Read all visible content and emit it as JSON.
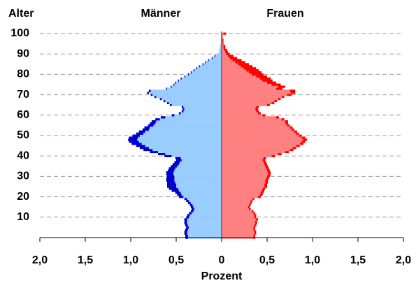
{
  "chart_data": {
    "type": "pyramid",
    "y_title": "Alter",
    "x_title": "Prozent",
    "xlim": [
      -2,
      2
    ],
    "xticks": [
      {
        "value": -2,
        "label": "2,0"
      },
      {
        "value": -1.5,
        "label": "1,5"
      },
      {
        "value": -1,
        "label": "1,0"
      },
      {
        "value": -0.5,
        "label": "0,5"
      },
      0,
      {
        "value": 0.5,
        "label": "0,5"
      },
      {
        "value": 1,
        "label": "1,0"
      },
      {
        "value": 1.5,
        "label": "1,5"
      },
      {
        "value": 2,
        "label": "2,0"
      }
    ],
    "ylim": [
      0,
      100
    ],
    "yticks": [
      10,
      20,
      30,
      40,
      50,
      60,
      70,
      80,
      90,
      100
    ],
    "grid": true,
    "series": [
      {
        "name": "Männer",
        "side": "left",
        "color": "#99ccff",
        "outer_color": "#0000cc",
        "values": [
          0.37,
          0.37,
          0.38,
          0.38,
          0.37,
          0.36,
          0.37,
          0.38,
          0.38,
          0.38,
          0.36,
          0.35,
          0.33,
          0.31,
          0.3,
          0.31,
          0.32,
          0.34,
          0.36,
          0.38,
          0.42,
          0.44,
          0.45,
          0.47,
          0.48,
          0.5,
          0.5,
          0.51,
          0.52,
          0.52,
          0.52,
          0.53,
          0.53,
          0.52,
          0.51,
          0.49,
          0.47,
          0.46,
          0.44,
          0.45,
          0.55,
          0.62,
          0.7,
          0.76,
          0.8,
          0.84,
          0.88,
          0.91,
          0.93,
          0.92,
          0.9,
          0.86,
          0.84,
          0.8,
          0.79,
          0.75,
          0.73,
          0.72,
          0.68,
          0.62,
          0.52,
          0.45,
          0.42,
          0.41,
          0.42,
          0.55,
          0.58,
          0.62,
          0.66,
          0.72,
          0.76,
          0.8,
          0.78,
          0.6,
          0.55,
          0.52,
          0.5,
          0.47,
          0.44,
          0.4,
          0.36,
          0.33,
          0.3,
          0.27,
          0.24,
          0.2,
          0.17,
          0.14,
          0.1,
          0.07,
          0.04,
          0.03,
          0.03,
          0.02,
          0.02,
          0.01,
          0.01,
          0.01,
          0,
          0,
          0.01
        ],
        "outer_values": [
          0.03,
          0.03,
          0.03,
          0.03,
          0.03,
          0.03,
          0.03,
          0.03,
          0.03,
          0.03,
          0.03,
          0.03,
          0.03,
          0.03,
          0.03,
          0.03,
          0.03,
          0.03,
          0.03,
          0.03,
          0.05,
          0.05,
          0.06,
          0.08,
          0.1,
          0.1,
          0.1,
          0.09,
          0.09,
          0.09,
          0.08,
          0.08,
          0.08,
          0.07,
          0.07,
          0.07,
          0.07,
          0.06,
          0.06,
          0.06,
          0.08,
          0.08,
          0.09,
          0.1,
          0.1,
          0.1,
          0.11,
          0.11,
          0.1,
          0.1,
          0.08,
          0.08,
          0.07,
          0.07,
          0.06,
          0.06,
          0.06,
          0.05,
          0.05,
          0.05,
          0.03,
          0.02,
          0.02,
          0.02,
          0.02,
          0.02,
          0.02,
          0.02,
          0.02,
          0.02,
          0.02,
          0.02,
          0.02,
          0.01,
          0.01,
          0.01,
          0.01,
          0.01,
          0.01,
          0.01,
          0.01,
          0.01,
          0.01,
          0.01,
          0.01,
          0.01,
          0.01,
          0.01,
          0.01,
          0.01,
          0,
          0,
          0,
          0,
          0,
          0,
          0,
          0,
          0,
          0,
          0
        ]
      },
      {
        "name": "Frauen",
        "side": "right",
        "color": "#ff8080",
        "outer_color": "#ff0000",
        "values": [
          0.35,
          0.35,
          0.36,
          0.36,
          0.35,
          0.35,
          0.36,
          0.37,
          0.37,
          0.38,
          0.36,
          0.36,
          0.35,
          0.33,
          0.3,
          0.29,
          0.3,
          0.31,
          0.32,
          0.34,
          0.4,
          0.42,
          0.43,
          0.44,
          0.45,
          0.47,
          0.47,
          0.48,
          0.48,
          0.49,
          0.5,
          0.51,
          0.51,
          0.5,
          0.49,
          0.48,
          0.47,
          0.46,
          0.45,
          0.46,
          0.55,
          0.62,
          0.7,
          0.75,
          0.78,
          0.82,
          0.86,
          0.88,
          0.9,
          0.88,
          0.85,
          0.82,
          0.8,
          0.77,
          0.75,
          0.72,
          0.7,
          0.7,
          0.66,
          0.6,
          0.45,
          0.4,
          0.38,
          0.37,
          0.38,
          0.5,
          0.55,
          0.58,
          0.62,
          0.66,
          0.72,
          0.76,
          0.75,
          0.6,
          0.62,
          0.55,
          0.5,
          0.45,
          0.42,
          0.38,
          0.33,
          0.3,
          0.27,
          0.24,
          0.21,
          0.18,
          0.15,
          0.12,
          0.09,
          0.07,
          0.05,
          0.04,
          0.03,
          0.02,
          0.02,
          0.01,
          0.01,
          0.01,
          0,
          0,
          0.02
        ],
        "outer_values": [
          0.02,
          0.02,
          0.02,
          0.02,
          0.02,
          0.02,
          0.02,
          0.02,
          0.02,
          0.02,
          0.02,
          0.02,
          0.02,
          0.02,
          0.02,
          0.02,
          0.02,
          0.02,
          0.02,
          0.02,
          0.03,
          0.03,
          0.03,
          0.03,
          0.03,
          0.03,
          0.03,
          0.03,
          0.03,
          0.03,
          0.03,
          0.03,
          0.03,
          0.03,
          0.03,
          0.03,
          0.03,
          0.03,
          0.03,
          0.03,
          0.04,
          0.04,
          0.04,
          0.04,
          0.04,
          0.04,
          0.04,
          0.04,
          0.04,
          0.04,
          0.03,
          0.03,
          0.03,
          0.03,
          0.03,
          0.03,
          0.03,
          0.03,
          0.03,
          0.03,
          0.03,
          0.03,
          0.03,
          0.03,
          0.03,
          0.03,
          0.03,
          0.03,
          0.03,
          0.03,
          0.05,
          0.05,
          0.06,
          0.07,
          0.08,
          0.1,
          0.1,
          0.11,
          0.12,
          0.12,
          0.13,
          0.14,
          0.14,
          0.14,
          0.13,
          0.12,
          0.11,
          0.1,
          0.08,
          0.06,
          0.04,
          0.03,
          0.03,
          0.02,
          0.02,
          0.01,
          0.01,
          0.01,
          0.01,
          0.01,
          0.03
        ]
      }
    ]
  }
}
